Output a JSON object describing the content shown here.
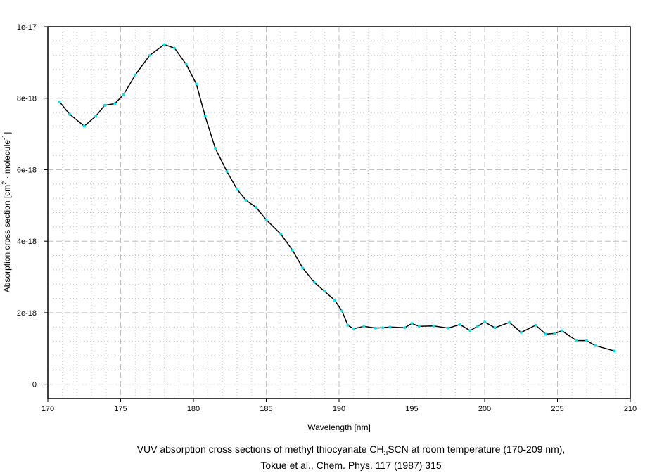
{
  "chart_data": {
    "type": "line",
    "title": "",
    "caption_line1_pre": "VUV absorption cross sections of methyl thiocyanate CH",
    "caption_line1_sub": "3",
    "caption_line1_post": "SCN at room temperature (170-209 nm),",
    "caption_line2": "Tokue et al., Chem. Phys. 117 (1987) 315",
    "xlabel": "Wavelength [nm]",
    "ylabel_pre": "Absorption cross section [cm",
    "ylabel_sup1": "2",
    "ylabel_mid": " · molecule",
    "ylabel_sup2": "-1",
    "ylabel_post": "]",
    "xlim": [
      170,
      210
    ],
    "ylim": [
      -4e-19,
      1e-17
    ],
    "xticks": [
      170,
      175,
      180,
      185,
      190,
      195,
      200,
      205,
      210
    ],
    "xtick_labels": [
      "170",
      "175",
      "180",
      "185",
      "190",
      "195",
      "200",
      "205",
      "210"
    ],
    "yticks": [
      0,
      2e-18,
      4e-18,
      6e-18,
      8e-18,
      1e-17
    ],
    "ytick_labels": [
      "0",
      "2e-18",
      "4e-18",
      "6e-18",
      "8e-18",
      "1e-17"
    ],
    "grid": true,
    "line_color": "#000000",
    "marker_color": "#00e5f0",
    "x": [
      170.8,
      171.5,
      172.5,
      173.3,
      173.9,
      174.6,
      175.2,
      176.0,
      177.0,
      178.0,
      178.7,
      179.5,
      180.2,
      180.8,
      181.5,
      182.3,
      183.0,
      183.6,
      184.3,
      185.0,
      186.0,
      186.8,
      187.5,
      188.3,
      189.0,
      189.7,
      190.2,
      190.6,
      191.0,
      191.7,
      192.5,
      193.0,
      193.5,
      194.5,
      195.0,
      195.5,
      196.5,
      197.5,
      198.3,
      199.0,
      199.5,
      200.0,
      200.7,
      201.7,
      202.5,
      203.5,
      204.2,
      204.8,
      205.3,
      206.3,
      207.0,
      207.6,
      208.9
    ],
    "y": [
      7.9e-18,
      7.55e-18,
      7.22e-18,
      7.5e-18,
      7.8e-18,
      7.85e-18,
      8.1e-18,
      8.65e-18,
      9.2e-18,
      9.5e-18,
      9.4e-18,
      8.95e-18,
      8.4e-18,
      7.5e-18,
      6.6e-18,
      5.95e-18,
      5.45e-18,
      5.15e-18,
      4.95e-18,
      4.6e-18,
      4.2e-18,
      3.75e-18,
      3.25e-18,
      2.85e-18,
      2.6e-18,
      2.35e-18,
      2.05e-18,
      1.65e-18,
      1.55e-18,
      1.62e-18,
      1.57e-18,
      1.58e-18,
      1.6e-18,
      1.58e-18,
      1.7e-18,
      1.62e-18,
      1.63e-18,
      1.57e-18,
      1.67e-18,
      1.5e-18,
      1.62e-18,
      1.74e-18,
      1.58e-18,
      1.73e-18,
      1.45e-18,
      1.65e-18,
      1.4e-18,
      1.42e-18,
      1.5e-18,
      1.22e-18,
      1.22e-18,
      1.08e-18,
      9.3e-19
    ]
  }
}
